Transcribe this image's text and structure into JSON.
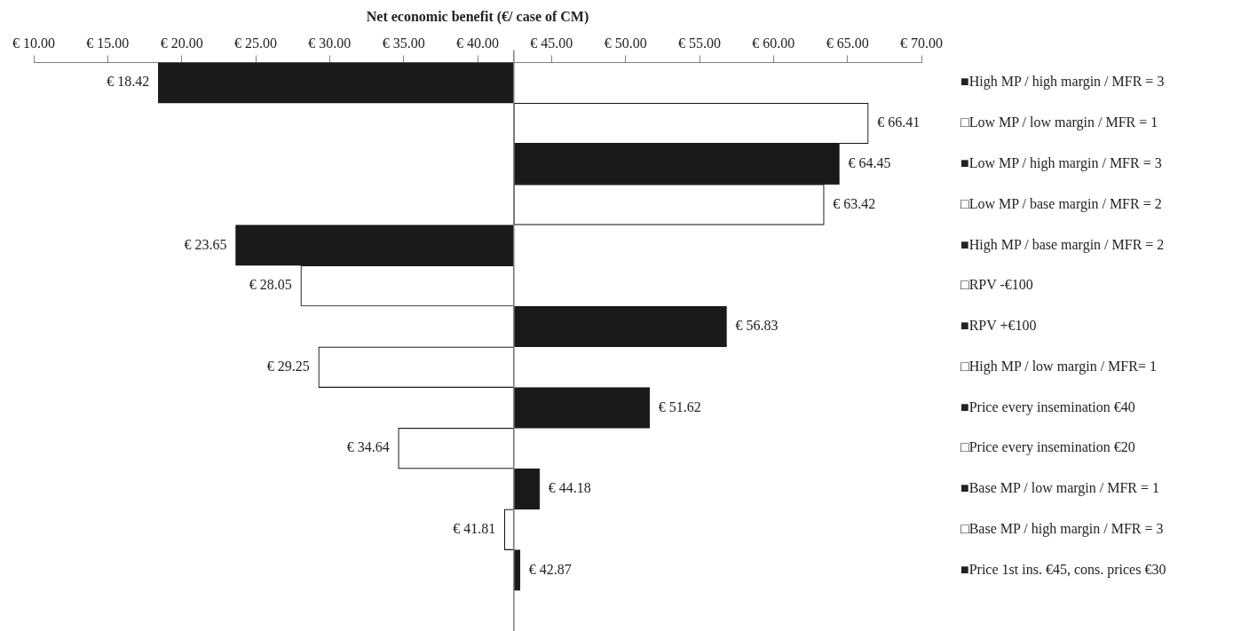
{
  "chart_data": {
    "type": "bar",
    "orientation": "horizontal",
    "xlabel": "Net economic benefit (€/ case of CM)",
    "categories": [
      "■High MP / high margin / MFR = 3",
      "□Low MP / low margin / MFR = 1",
      "■Low MP / high margin / MFR = 3",
      "□Low MP / base margin / MFR = 2",
      "■High MP / base margin / MFR = 2",
      "□RPV -€100",
      "■RPV +€100",
      "□High MP / low margin / MFR= 1",
      "■Price every insemination €40",
      "□Price every insemination €20",
      "■Base MP / low margin / MFR = 1",
      "□Base MP / high margin / MFR = 3",
      "■Price 1st ins. €45, cons. prices €30"
    ],
    "base": [
      42.45,
      42.45,
      42.45,
      42.45,
      42.45,
      42.45,
      42.45,
      42.45,
      42.45,
      42.45,
      42.45,
      42.45,
      42.45
    ],
    "values": [
      -24.03,
      23.96,
      22.0,
      20.97,
      -18.8,
      -14.4,
      14.38,
      -13.2,
      9.17,
      -7.81,
      1.73,
      -0.64,
      0.42
    ],
    "value_labels": [
      "€ 18.42",
      "€ 66.41",
      "€ 64.45",
      "€ 63.42",
      "€ 23.65",
      "€ 28.05",
      "€ 56.83",
      "€ 29.25",
      "€ 51.62",
      "€ 34.64",
      "€ 44.18",
      "€ 41.81",
      "€ 42.87"
    ],
    "colors": [
      "#1a1a1a",
      "#ffffff",
      "#1a1a1a",
      "#ffffff",
      "#1a1a1a",
      "#ffffff",
      "#1a1a1a",
      "#ffffff",
      "#1a1a1a",
      "#ffffff",
      "#1a1a1a",
      "#ffffff",
      "#1a1a1a"
    ],
    "xlim": [
      10,
      70
    ],
    "xticks": [
      {
        "value": 10,
        "label": "€ 10.00"
      },
      {
        "value": 15,
        "label": "€ 15.00"
      },
      {
        "value": 20,
        "label": "€ 20.00"
      },
      {
        "value": 25,
        "label": "€ 25.00"
      },
      {
        "value": 30,
        "label": "€ 30.00"
      },
      {
        "value": 35,
        "label": "€ 35.00"
      },
      {
        "value": 40,
        "label": "€ 40.00"
      },
      {
        "value": 45,
        "label": "€ 45.00"
      },
      {
        "value": 50,
        "label": "€ 50.00"
      },
      {
        "value": 55,
        "label": "€ 55.00"
      },
      {
        "value": 60,
        "label": "€ 60.00"
      },
      {
        "value": 65,
        "label": "€ 65.00"
      },
      {
        "value": 70,
        "label": "€ 70.00"
      }
    ],
    "ref_lines": [
      {
        "axis": "x",
        "value": 42.45,
        "color": "#808080"
      }
    ],
    "grid": false,
    "legend": false
  }
}
